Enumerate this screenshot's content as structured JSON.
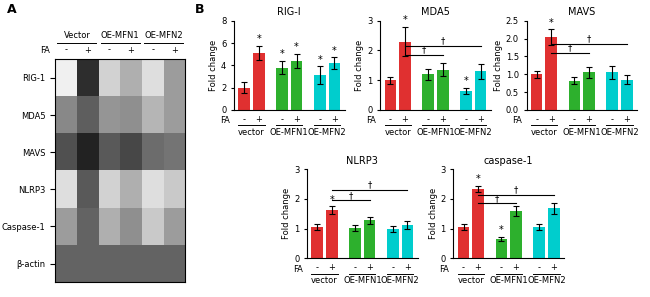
{
  "chart_data": [
    {
      "type": "heatmap",
      "annotations": [
        "A"
      ],
      "rows": [
        "RIG-1",
        "MDA5",
        "MAVS",
        "NLRP3",
        "Caspase-1",
        "β-actin"
      ],
      "categories": [
        "-",
        "+",
        "-",
        "+",
        "-",
        "+"
      ],
      "x_label": "FA",
      "groups": [
        "Vector",
        "OE-MFN1",
        "OE-MFN2"
      ],
      "clim": [
        0,
        1
      ],
      "cells": [
        [
          0.12,
          0.85,
          0.28,
          0.42,
          0.22,
          0.48
        ],
        [
          0.55,
          0.7,
          0.5,
          0.52,
          0.4,
          0.48
        ],
        [
          0.75,
          0.88,
          0.72,
          0.78,
          0.65,
          0.62
        ],
        [
          0.22,
          0.72,
          0.28,
          0.42,
          0.22,
          0.32
        ],
        [
          0.48,
          0.68,
          0.42,
          0.52,
          0.32,
          0.48
        ],
        [
          0.68,
          0.68,
          0.68,
          0.68,
          0.68,
          0.68
        ]
      ]
    },
    {
      "type": "bar",
      "title": "RIG-I",
      "y_label": "Fold change",
      "x_label": "FA",
      "annotations": [
        "B"
      ],
      "categories": [
        "-",
        "+",
        "-",
        "+",
        "-",
        "+"
      ],
      "groups": [
        "vector",
        "OE-MFN1",
        "OE-MFN2"
      ],
      "values": [
        2.0,
        5.1,
        3.8,
        4.4,
        3.1,
        4.2
      ],
      "errors": [
        0.5,
        0.65,
        0.6,
        0.65,
        0.8,
        0.55
      ],
      "colors": [
        "#e03030",
        "#e03030",
        "#2db02d",
        "#2db02d",
        "#00cdcd",
        "#00cdcd"
      ],
      "ylim": [
        0,
        8
      ],
      "yticks": [
        0,
        2,
        4,
        6,
        8
      ],
      "stars": [
        null,
        "*",
        "*",
        "*",
        "*",
        "*"
      ],
      "sig_lines": []
    },
    {
      "type": "bar",
      "title": "MDA5",
      "y_label": "Fold change",
      "x_label": "FA",
      "categories": [
        "-",
        "+",
        "-",
        "+",
        "-",
        "+"
      ],
      "groups": [
        "vector",
        "OE-MFN1",
        "OE-MFN2"
      ],
      "values": [
        1.0,
        2.3,
        1.2,
        1.35,
        0.65,
        1.3
      ],
      "errors": [
        0.12,
        0.5,
        0.18,
        0.22,
        0.1,
        0.25
      ],
      "colors": [
        "#e03030",
        "#e03030",
        "#2db02d",
        "#2db02d",
        "#00cdcd",
        "#00cdcd"
      ],
      "ylim": [
        0,
        3
      ],
      "yticks": [
        0,
        1,
        2,
        3
      ],
      "stars": [
        null,
        "*",
        null,
        null,
        "*",
        null
      ],
      "sig_lines": [
        {
          "y": 1.85,
          "x1": 1,
          "x2": 3,
          "label": "†"
        },
        {
          "y": 2.15,
          "x1": 1,
          "x2": 5,
          "label": "†"
        }
      ]
    },
    {
      "type": "bar",
      "title": "MAVS",
      "y_label": "Fold change",
      "x_label": "FA",
      "categories": [
        "-",
        "+",
        "-",
        "+",
        "-",
        "+"
      ],
      "groups": [
        "vector",
        "OE-MFN1",
        "OE-MFN2"
      ],
      "values": [
        1.0,
        2.05,
        0.82,
        1.05,
        1.05,
        0.85
      ],
      "errors": [
        0.1,
        0.22,
        0.1,
        0.15,
        0.18,
        0.13
      ],
      "colors": [
        "#e03030",
        "#e03030",
        "#2db02d",
        "#2db02d",
        "#00cdcd",
        "#00cdcd"
      ],
      "ylim": [
        0.0,
        2.5
      ],
      "yticks": [
        0.0,
        0.5,
        1.0,
        1.5,
        2.0,
        2.5
      ],
      "stars": [
        null,
        "*",
        null,
        null,
        null,
        null
      ],
      "sig_lines": [
        {
          "y": 1.6,
          "x1": 1,
          "x2": 3,
          "label": "†"
        },
        {
          "y": 1.85,
          "x1": 1,
          "x2": 5,
          "label": "†"
        }
      ]
    },
    {
      "type": "bar",
      "title": "NLRP3",
      "y_label": "Fold change",
      "x_label": "FA",
      "categories": [
        "-",
        "+",
        "-",
        "+",
        "-",
        "+"
      ],
      "groups": [
        "vector",
        "OE-MFN1",
        "OE-MFN2"
      ],
      "values": [
        1.05,
        1.62,
        1.02,
        1.28,
        1.0,
        1.12
      ],
      "errors": [
        0.1,
        0.13,
        0.1,
        0.13,
        0.1,
        0.13
      ],
      "colors": [
        "#e03030",
        "#e03030",
        "#2db02d",
        "#2db02d",
        "#00cdcd",
        "#00cdcd"
      ],
      "ylim": [
        0,
        3
      ],
      "yticks": [
        0,
        1,
        2,
        3
      ],
      "stars": [
        null,
        "*",
        null,
        null,
        null,
        null
      ],
      "sig_lines": [
        {
          "y": 1.95,
          "x1": 1,
          "x2": 3,
          "label": "†"
        },
        {
          "y": 2.3,
          "x1": 1,
          "x2": 5,
          "label": "†"
        }
      ]
    },
    {
      "type": "bar",
      "title": "caspase-1",
      "y_label": "Fold change",
      "x_label": "FA",
      "categories": [
        "-",
        "+",
        "-",
        "+",
        "-",
        "+"
      ],
      "groups": [
        "vector",
        "OE-MFN1",
        "OE-MFN2"
      ],
      "values": [
        1.05,
        2.35,
        0.65,
        1.6,
        1.05,
        1.68
      ],
      "errors": [
        0.1,
        0.1,
        0.08,
        0.18,
        0.1,
        0.2
      ],
      "colors": [
        "#e03030",
        "#e03030",
        "#2db02d",
        "#2db02d",
        "#00cdcd",
        "#00cdcd"
      ],
      "ylim": [
        0,
        3
      ],
      "yticks": [
        0,
        1,
        2,
        3
      ],
      "stars": [
        null,
        "*",
        "*",
        null,
        null,
        null
      ],
      "sig_lines": [
        {
          "y": 1.85,
          "x1": 1,
          "x2": 3,
          "label": "†"
        },
        {
          "y": 2.15,
          "x1": 1,
          "x2": 5,
          "label": "†"
        }
      ]
    }
  ]
}
